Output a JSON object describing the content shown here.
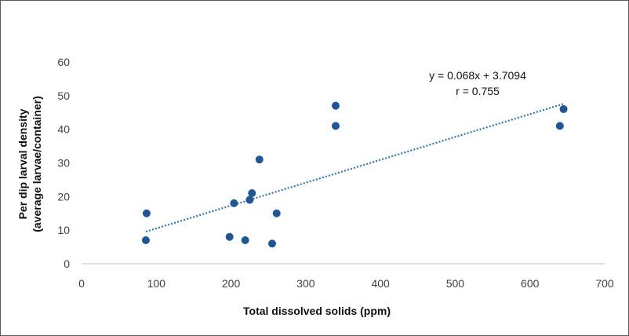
{
  "chart_data": {
    "type": "scatter",
    "title": "",
    "xlabel": "Total dissolved solids (ppm)",
    "ylabel_lines": [
      "Per dip larval density",
      "(average larvae/container)"
    ],
    "xlim": [
      0,
      700
    ],
    "ylim": [
      0,
      60
    ],
    "xticks": [
      0,
      100,
      200,
      300,
      400,
      500,
      600,
      700
    ],
    "yticks": [
      0,
      10,
      20,
      30,
      40,
      50,
      60
    ],
    "grid": false,
    "legend": "none",
    "series": [
      {
        "color": "#1f5796",
        "points": [
          {
            "x": 86,
            "y": 7
          },
          {
            "x": 87,
            "y": 15
          },
          {
            "x": 198,
            "y": 8
          },
          {
            "x": 204,
            "y": 18
          },
          {
            "x": 219,
            "y": 7
          },
          {
            "x": 225,
            "y": 19
          },
          {
            "x": 228,
            "y": 21
          },
          {
            "x": 238,
            "y": 31
          },
          {
            "x": 255,
            "y": 6
          },
          {
            "x": 261,
            "y": 15
          },
          {
            "x": 340,
            "y": 47
          },
          {
            "x": 340,
            "y": 41
          },
          {
            "x": 640,
            "y": 41
          },
          {
            "x": 645,
            "y": 46
          }
        ]
      }
    ],
    "trendline": {
      "style": "dotted",
      "color": "#2e75b6",
      "slope": 0.068,
      "intercept": 3.7094,
      "x_range": [
        86,
        645
      ]
    },
    "annotations": [
      "y = 0.068x + 3.7094",
      "r = 0.755"
    ]
  }
}
